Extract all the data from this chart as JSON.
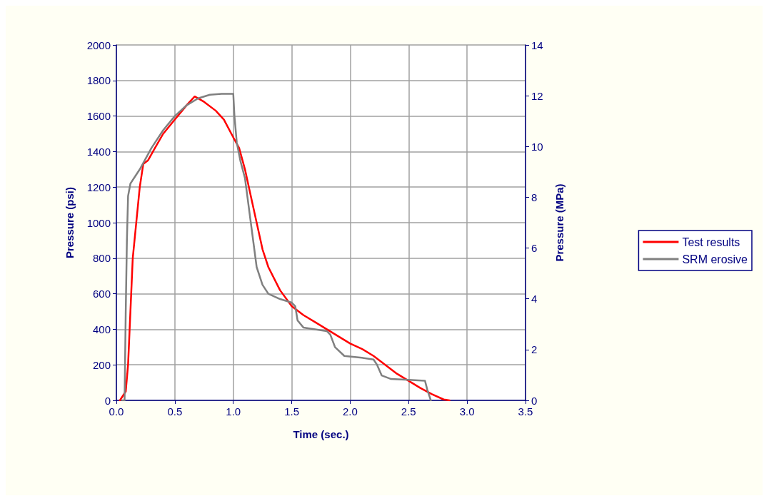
{
  "chart_data": {
    "type": "line",
    "xlabel": "Time (sec.)",
    "ylabel": "Pressure (psi)",
    "y2label": "Pressure (MPa)",
    "xlim": [
      0,
      3.5
    ],
    "xticks": [
      {
        "value": 0,
        "label": "0.0"
      },
      {
        "value": 0.5,
        "label": "0.5"
      },
      {
        "value": 1,
        "label": "1.0"
      },
      {
        "value": 1.5,
        "label": "1.5"
      },
      {
        "value": 2,
        "label": "2.0"
      },
      {
        "value": 2.5,
        "label": "2.5"
      },
      {
        "value": 3,
        "label": "3.0"
      },
      {
        "value": 3.5,
        "label": "3.5"
      }
    ],
    "ylim": [
      0,
      2000
    ],
    "yticks": [
      0,
      200,
      400,
      600,
      800,
      1000,
      1200,
      1400,
      1600,
      1800,
      2000
    ],
    "y2lim": [
      0,
      14
    ],
    "y2ticks": [
      0,
      2,
      4,
      6,
      8,
      10,
      12,
      14
    ],
    "grid": true,
    "legend": "right",
    "marker": "none",
    "line_style": "solid",
    "series": [
      {
        "name": "Test results",
        "color": "#ff0000",
        "x": [
          0.03,
          0.08,
          0.1,
          0.12,
          0.14,
          0.17,
          0.2,
          0.23,
          0.27,
          0.33,
          0.4,
          0.5,
          0.6,
          0.67,
          0.75,
          0.85,
          0.92,
          1.0,
          1.05,
          1.1,
          1.15,
          1.2,
          1.25,
          1.3,
          1.4,
          1.5,
          1.6,
          1.7,
          1.8,
          1.9,
          2.0,
          2.1,
          2.2,
          2.3,
          2.4,
          2.5,
          2.6,
          2.7,
          2.8,
          2.85
        ],
        "values": [
          0,
          50,
          200,
          500,
          800,
          1000,
          1200,
          1330,
          1350,
          1420,
          1500,
          1580,
          1660,
          1710,
          1680,
          1630,
          1580,
          1480,
          1420,
          1300,
          1150,
          1000,
          850,
          750,
          620,
          530,
          480,
          440,
          400,
          360,
          320,
          290,
          250,
          200,
          150,
          110,
          70,
          35,
          5,
          0
        ]
      },
      {
        "name": "SRM erosive",
        "color": "#808080",
        "x": [
          0.05,
          0.07,
          0.08,
          0.09,
          0.1,
          0.12,
          0.2,
          0.3,
          0.4,
          0.5,
          0.6,
          0.7,
          0.8,
          0.9,
          1.0,
          1.01,
          1.03,
          1.06,
          1.1,
          1.12,
          1.15,
          1.2,
          1.25,
          1.3,
          1.4,
          1.5,
          1.53,
          1.55,
          1.6,
          1.7,
          1.8,
          1.83,
          1.87,
          1.95,
          2.1,
          2.2,
          2.23,
          2.27,
          2.35,
          2.5,
          2.64,
          2.66,
          2.69
        ],
        "values": [
          0,
          0,
          500,
          900,
          1150,
          1220,
          1300,
          1420,
          1520,
          1600,
          1660,
          1700,
          1720,
          1725,
          1725,
          1600,
          1450,
          1350,
          1250,
          1150,
          1000,
          750,
          650,
          600,
          570,
          550,
          530,
          450,
          410,
          400,
          390,
          370,
          300,
          250,
          240,
          230,
          200,
          140,
          120,
          115,
          110,
          60,
          0
        ]
      }
    ]
  }
}
